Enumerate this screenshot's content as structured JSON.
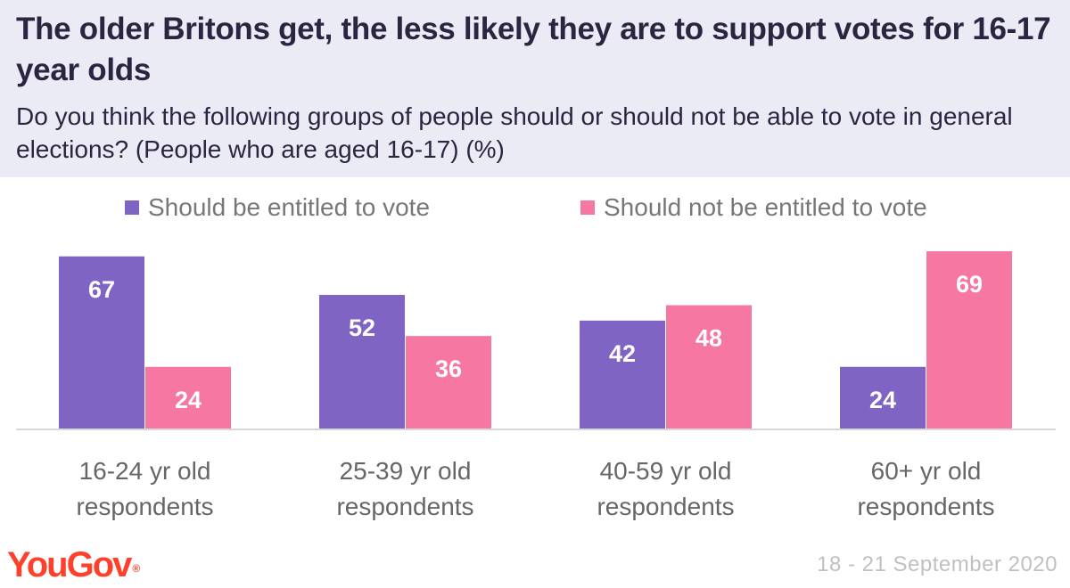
{
  "chart_data": {
    "type": "bar",
    "title": "The older Britons get, the less likely they are to support votes for 16-17 year olds",
    "subtitle": "Do you think the following groups of people should or should not be able to vote in general elections? (People who are aged 16-17) (%)",
    "categories": [
      [
        "16-24 yr old",
        "respondents"
      ],
      [
        "25-39 yr old",
        "respondents"
      ],
      [
        "40-59 yr old",
        "respondents"
      ],
      [
        "60+ yr old",
        "respondents"
      ]
    ],
    "series": [
      {
        "name": "Should be entitled to vote",
        "color": "#7f64c4",
        "values": [
          67,
          52,
          42,
          24
        ]
      },
      {
        "name": "Should not be entitled to vote",
        "color": "#f577a2",
        "values": [
          24,
          36,
          48,
          69
        ]
      }
    ],
    "ylim": [
      0,
      69
    ],
    "xlabel": "",
    "ylabel": "",
    "grid": false
  },
  "footer": {
    "brand": "YouGov",
    "brand_mark": "®",
    "date": "18 - 21 September 2020"
  },
  "colors": {
    "header_bg": "#ebebf5",
    "title_text": "#2b2541",
    "axis": "#d8d8d8",
    "label_text": "#666666",
    "brand": "#ff412c"
  }
}
